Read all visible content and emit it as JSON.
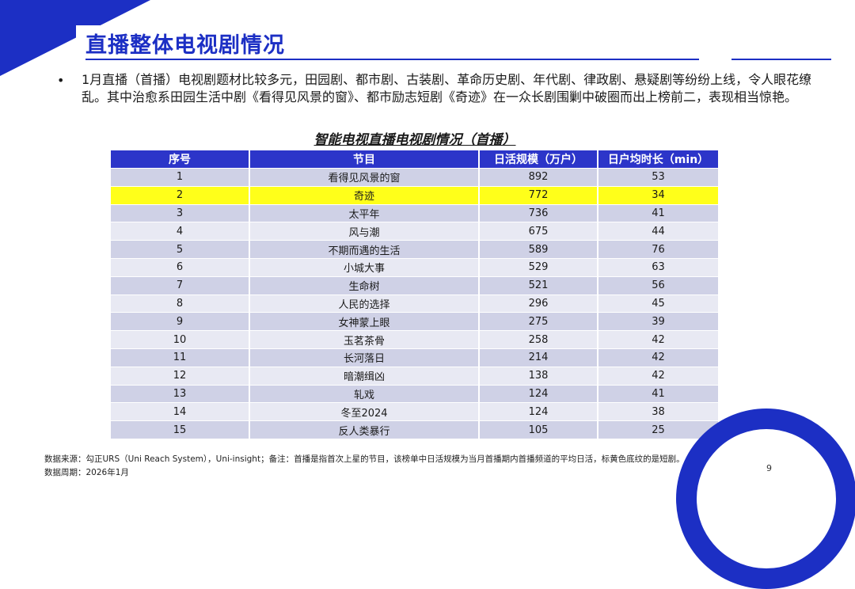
{
  "page": {
    "title": "直播整体电视剧情况",
    "intro": "1月直播（首播）电视剧题材比较多元，田园剧、都市剧、古装剧、革命历史剧、年代剧、律政剧、悬疑剧等纷纷上线，令人眼花缭乱。其中治愈系田园生活中剧《看得见风景的窗》、都市励志短剧《奇迹》在一众长剧围剿中破圈而出上榜前二，表现相当惊艳。",
    "bullet": "•",
    "page_number": "9",
    "accent_color": "#1c2fc4",
    "highlight_color": "#ffff1a"
  },
  "table": {
    "title": "智能电视直播电视剧情况（首播）",
    "headers": [
      "序号",
      "节目",
      "日活规模（万户）",
      "日户均时长（min）"
    ],
    "rows": [
      [
        "1",
        "看得见风景的窗",
        "892",
        "53"
      ],
      [
        "2",
        "奇迹",
        "772",
        "34"
      ],
      [
        "3",
        "太平年",
        "736",
        "41"
      ],
      [
        "4",
        "风与潮",
        "675",
        "44"
      ],
      [
        "5",
        "不期而遇的生活",
        "589",
        "76"
      ],
      [
        "6",
        "小城大事",
        "529",
        "63"
      ],
      [
        "7",
        "生命树",
        "521",
        "56"
      ],
      [
        "8",
        "人民的选择",
        "296",
        "45"
      ],
      [
        "9",
        "女神蒙上眼",
        "275",
        "39"
      ],
      [
        "10",
        "玉茗茶骨",
        "258",
        "42"
      ],
      [
        "11",
        "长河落日",
        "214",
        "42"
      ],
      [
        "12",
        "暗潮缉凶",
        "138",
        "42"
      ],
      [
        "13",
        "轧戏",
        "124",
        "41"
      ],
      [
        "14",
        "冬至2024",
        "124",
        "38"
      ],
      [
        "15",
        "反人类暴行",
        "105",
        "25"
      ]
    ]
  },
  "footer": {
    "source": "数据来源：勾正URS（Uni Reach System），Uni-insight；备注：首播是指首次上星的节目，该榜单中日活规模为当月首播期内首播频道的平均日活，标黄色底纹的是短剧。",
    "period": "数据周期：2026年1月"
  }
}
